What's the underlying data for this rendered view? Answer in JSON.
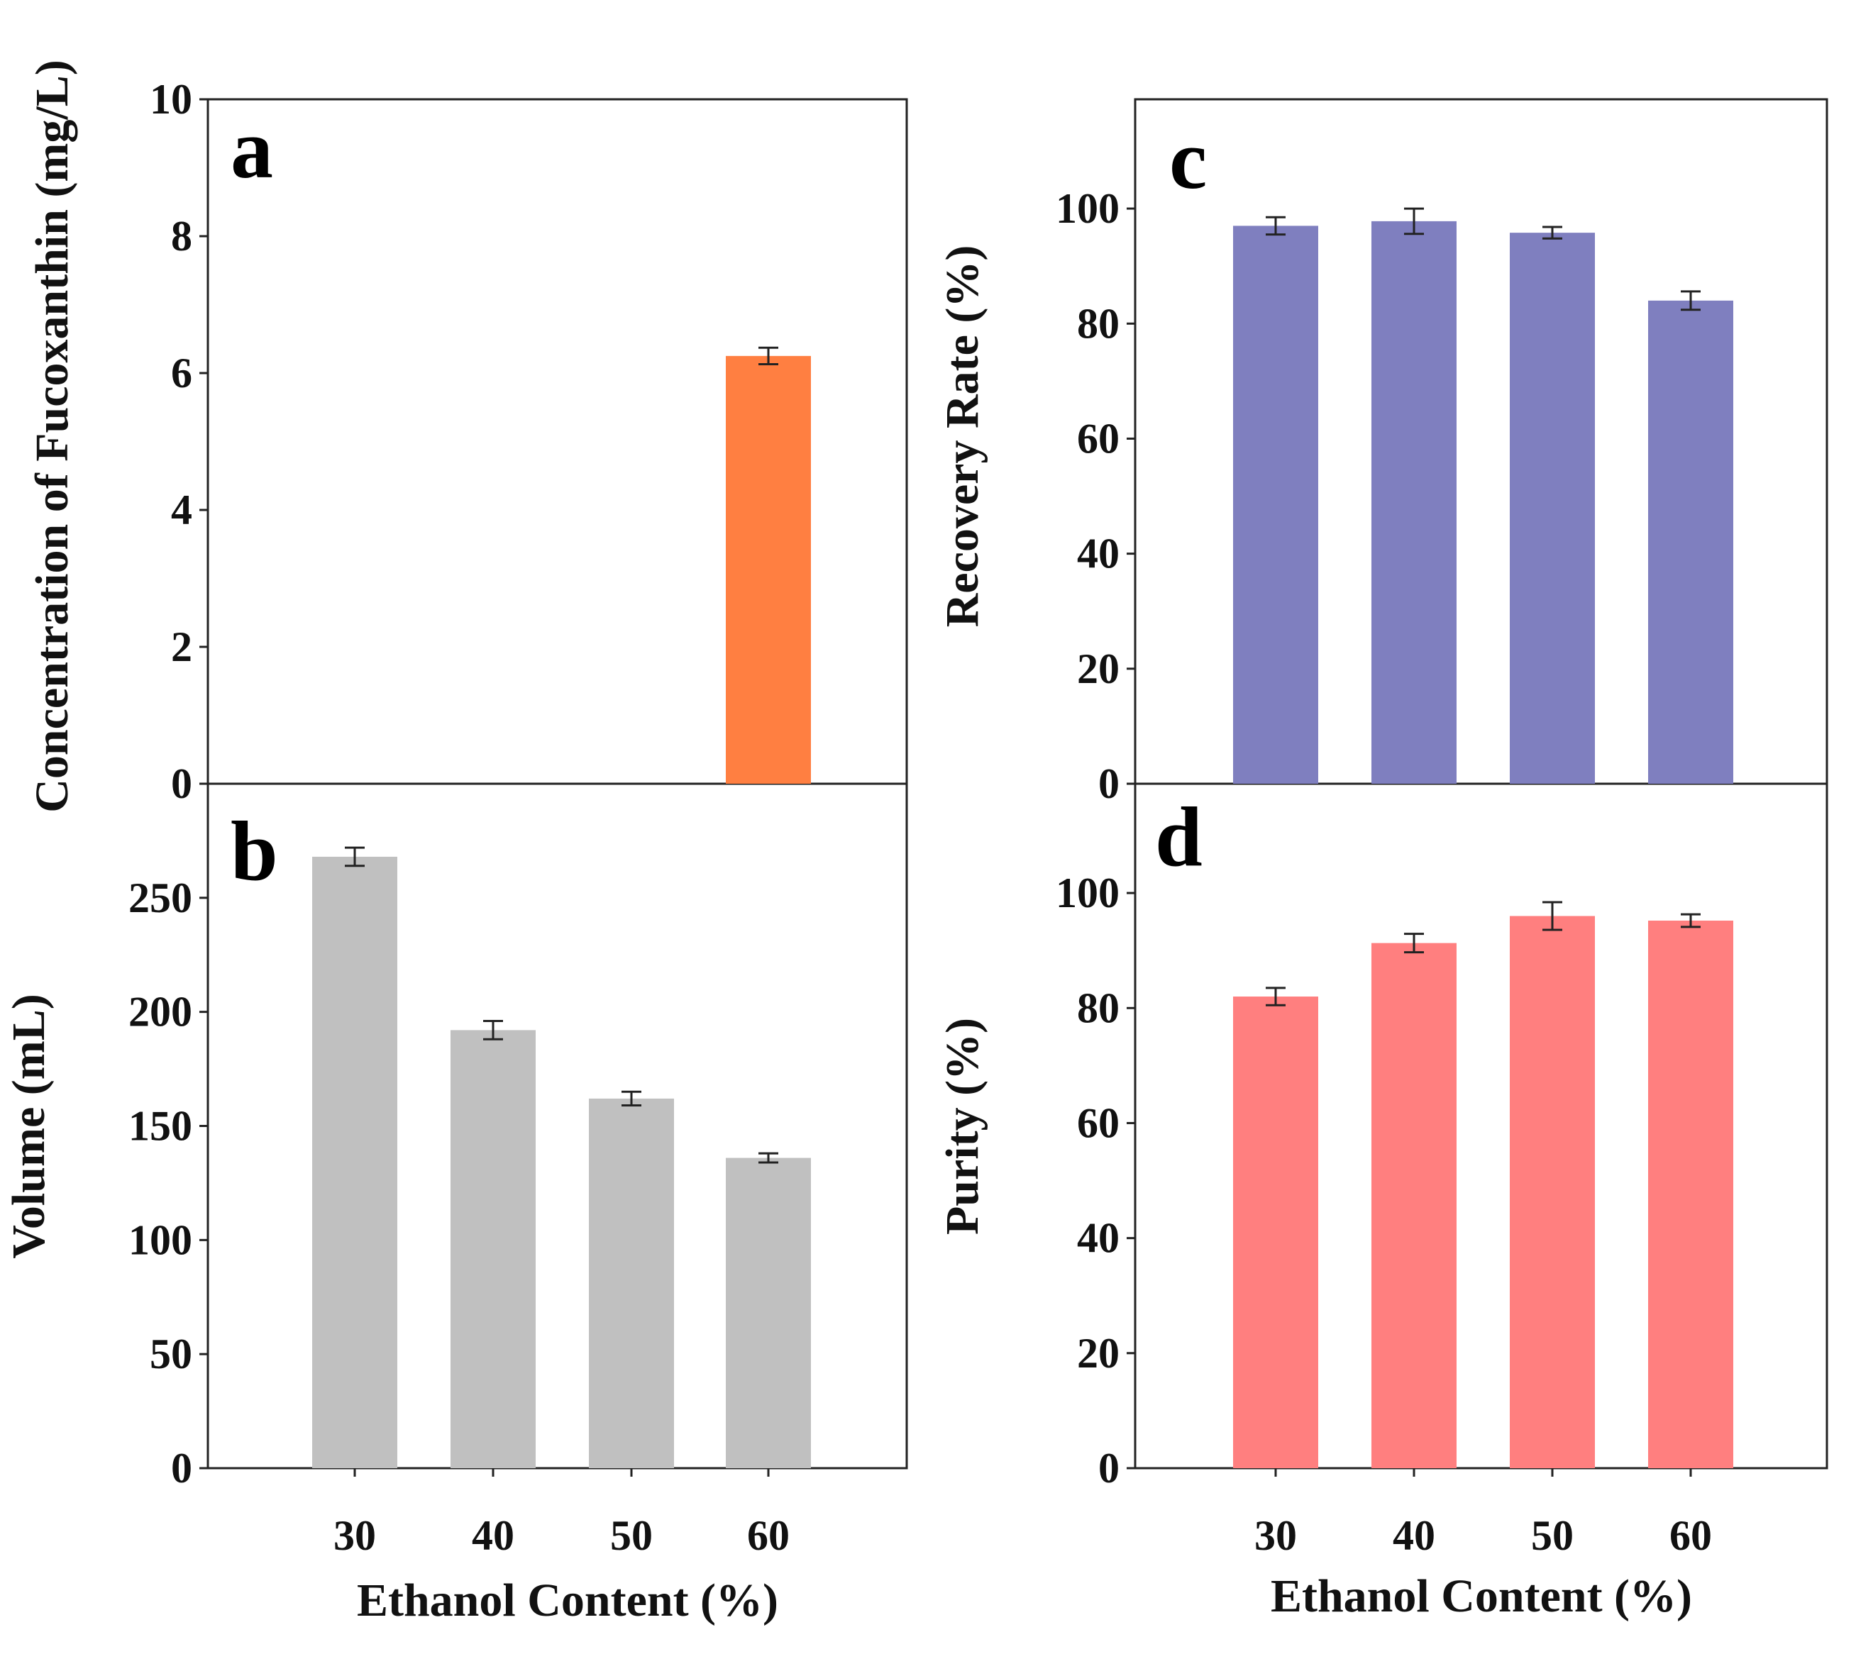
{
  "chart_data": [
    {
      "id": "a",
      "type": "bar",
      "panel_letter": "a",
      "categories": [
        "30",
        "40",
        "50",
        "60"
      ],
      "values": [
        null,
        null,
        null,
        6.25
      ],
      "errors": [
        null,
        null,
        null,
        0.12
      ],
      "ylim": [
        0,
        10
      ],
      "yticks": [
        "0",
        "2",
        "4",
        "6",
        "8",
        "10"
      ],
      "ylabel": "Concentration of Fucoxanthin (mg/L)",
      "xlabel": "",
      "color": "#ff7f41"
    },
    {
      "id": "b",
      "type": "bar",
      "panel_letter": "b",
      "categories": [
        "30",
        "40",
        "50",
        "60"
      ],
      "values": [
        268,
        192,
        162,
        136
      ],
      "errors": [
        4,
        4,
        3,
        2
      ],
      "ylim": [
        0,
        300
      ],
      "yticks": [
        "0",
        "50",
        "100",
        "150",
        "200",
        "250"
      ],
      "ylabel": "Volume (mL)",
      "xlabel": "Ethanol Content (%)",
      "color": "#c0c0c0"
    },
    {
      "id": "c",
      "type": "bar",
      "panel_letter": "c",
      "categories": [
        "30",
        "40",
        "50",
        "60"
      ],
      "values": [
        97,
        97.8,
        95.8,
        84
      ],
      "errors": [
        1.5,
        2.2,
        1.0,
        1.6
      ],
      "ylim": [
        0,
        119
      ],
      "yticks": [
        "0",
        "20",
        "40",
        "60",
        "80",
        "100"
      ],
      "ylabel": "Recovery Rate (%)",
      "xlabel": "",
      "color": "#7f7fbf"
    },
    {
      "id": "d",
      "type": "bar",
      "panel_letter": "d",
      "categories": [
        "30",
        "40",
        "50",
        "60"
      ],
      "values": [
        82,
        91.3,
        96,
        95.2
      ],
      "errors": [
        1.5,
        1.6,
        2.4,
        1.1
      ],
      "ylim": [
        0,
        119
      ],
      "yticks": [
        "0",
        "20",
        "40",
        "60",
        "80",
        "100"
      ],
      "ylabel": "Purity (%)",
      "xlabel": "Ethanol Content (%)",
      "color": "#ff7f7f"
    }
  ]
}
